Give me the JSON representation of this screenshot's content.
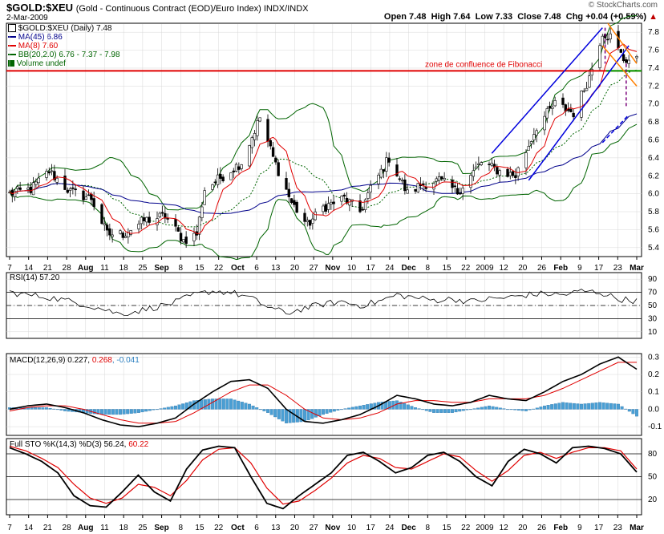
{
  "header": {
    "symbol": "$GOLD:$XEU",
    "description": "(Gold - Continuous Contract (EOD)/Euro Index)",
    "exchange": "INDX/INDX",
    "date": "2-Mar-2009",
    "watermark": "© StockCharts.com",
    "quote": {
      "open": "Open 7.48",
      "high": "High 7.64",
      "low": "Low 7.33",
      "close": "Close 7.48",
      "chg": "Chg +0.04 (+0.59%)",
      "chg_arrow": "▲"
    }
  },
  "colors": {
    "ma45": "#00008b",
    "ma8": "#e00000",
    "bb": "#006400",
    "fib_line": "#e00000",
    "channel": "#0000dd",
    "down_channel": "#ff8000",
    "dashed_marker": "#7a007a",
    "macd_hist": "#4a9fd4",
    "grid": "#d8d8d8"
  },
  "chart_data": [
    {
      "type": "candlestick",
      "panel": "price",
      "title": "$GOLD:$XEU (Daily) 7.48",
      "legend": [
        {
          "label": "$GOLD:$XEU (Daily) 7.48",
          "color": "#000000"
        },
        {
          "label": "MA(45) 6.86",
          "color": "#00008b"
        },
        {
          "label": "MA(8) 7.60",
          "color": "#e00000"
        },
        {
          "label": "BB(20,2.0) 6.76 - 7.37 - 7.98",
          "color": "#006400"
        },
        {
          "label": "Volume undef",
          "color": "#006400"
        }
      ],
      "annotation": "zone de confluence de Fibonacci",
      "fib_level": 7.37,
      "ylim": [
        5.3,
        7.9
      ],
      "yticks": [
        "5.4",
        "5.6",
        "5.8",
        "6.0",
        "6.2",
        "6.4",
        "6.6",
        "6.8",
        "7.0",
        "7.2",
        "7.4",
        "7.6",
        "7.8"
      ],
      "xticks": [
        "7",
        "14",
        "21",
        "28",
        "Aug",
        "11",
        "18",
        "25",
        "Sep",
        "8",
        "15",
        "22",
        "Oct",
        "6",
        "13",
        "20",
        "27",
        "Nov",
        "10",
        "17",
        "24",
        "Dec",
        "8",
        "15",
        "22",
        "2009",
        "12",
        "20",
        "26",
        "Feb",
        "9",
        "17",
        "23",
        "Mar"
      ],
      "x_start": "2008-07-07",
      "x_end": "2009-03-02",
      "close_path": [
        [
          "2008-07-07",
          6.0
        ],
        [
          "2008-07-15",
          6.05
        ],
        [
          "2008-07-22",
          6.25
        ],
        [
          "2008-07-30",
          6.02
        ],
        [
          "2008-08-07",
          5.95
        ],
        [
          "2008-08-13",
          5.55
        ],
        [
          "2008-08-19",
          5.55
        ],
        [
          "2008-08-27",
          5.7
        ],
        [
          "2008-09-04",
          5.75
        ],
        [
          "2008-09-11",
          5.48
        ],
        [
          "2008-09-16",
          5.55
        ],
        [
          "2008-09-19",
          6.05
        ],
        [
          "2008-09-26",
          6.2
        ],
        [
          "2008-10-03",
          6.35
        ],
        [
          "2008-10-10",
          6.85
        ],
        [
          "2008-10-15",
          6.4
        ],
        [
          "2008-10-22",
          5.9
        ],
        [
          "2008-10-28",
          5.65
        ],
        [
          "2008-11-03",
          5.85
        ],
        [
          "2008-11-11",
          5.95
        ],
        [
          "2008-11-17",
          5.8
        ],
        [
          "2008-11-21",
          6.05
        ],
        [
          "2008-11-28",
          6.4
        ],
        [
          "2008-12-05",
          6.0
        ],
        [
          "2008-12-10",
          6.1
        ],
        [
          "2008-12-17",
          6.15
        ],
        [
          "2008-12-24",
          6.02
        ],
        [
          "2009-01-02",
          6.35
        ],
        [
          "2009-01-09",
          6.25
        ],
        [
          "2009-01-15",
          6.2
        ],
        [
          "2009-01-23",
          6.75
        ],
        [
          "2009-01-30",
          7.0
        ],
        [
          "2009-02-06",
          6.9
        ],
        [
          "2009-02-12",
          7.3
        ],
        [
          "2009-02-17",
          7.8
        ],
        [
          "2009-02-20",
          7.75
        ],
        [
          "2009-02-25",
          7.5
        ],
        [
          "2009-03-02",
          7.48
        ]
      ]
    },
    {
      "type": "line",
      "panel": "rsi",
      "title": "RSI(14) 57.20",
      "ylim": [
        0,
        100
      ],
      "yticks": [
        "90",
        "70",
        "50",
        "30",
        "10"
      ],
      "values": [
        70,
        66,
        63,
        58,
        52,
        45,
        37,
        42,
        48,
        55,
        66,
        72,
        70,
        62,
        48,
        38,
        46,
        52,
        56,
        50,
        56,
        66,
        62,
        58,
        60,
        56,
        60,
        62,
        66,
        68,
        66,
        72,
        70,
        60,
        57
      ]
    },
    {
      "type": "line",
      "panel": "macd",
      "title": "MACD(12,26,9)",
      "value_label": "0.227",
      "signal_label": "0.268",
      "hist_label": "-0.041",
      "ylim": [
        -0.15,
        0.32
      ],
      "yticks": [
        "0.3",
        "0.2",
        "0.1",
        "0.0",
        "-0.1"
      ],
      "macd": [
        0.0,
        0.02,
        0.03,
        0.01,
        -0.02,
        -0.06,
        -0.09,
        -0.1,
        -0.08,
        -0.05,
        0.03,
        0.1,
        0.16,
        0.17,
        0.12,
        0.0,
        -0.07,
        -0.08,
        -0.06,
        -0.03,
        0.02,
        0.08,
        0.06,
        0.03,
        0.02,
        0.04,
        0.08,
        0.06,
        0.05,
        0.1,
        0.16,
        0.2,
        0.26,
        0.3,
        0.23
      ],
      "signal": [
        -0.01,
        0.01,
        0.02,
        0.02,
        0.0,
        -0.03,
        -0.06,
        -0.08,
        -0.08,
        -0.07,
        -0.02,
        0.04,
        0.1,
        0.14,
        0.14,
        0.08,
        0.0,
        -0.05,
        -0.06,
        -0.05,
        -0.02,
        0.03,
        0.05,
        0.05,
        0.04,
        0.04,
        0.06,
        0.06,
        0.06,
        0.08,
        0.12,
        0.17,
        0.22,
        0.27,
        0.27
      ]
    },
    {
      "type": "line",
      "panel": "stochastic",
      "title": "Full STO %K(14,3) %D(3)",
      "k_label": "56.24",
      "d_label": "60.22",
      "ylim": [
        0,
        100
      ],
      "yticks": [
        "80",
        "50",
        "20"
      ],
      "k": [
        88,
        80,
        70,
        55,
        25,
        12,
        10,
        30,
        52,
        30,
        18,
        60,
        85,
        90,
        88,
        50,
        15,
        8,
        25,
        40,
        55,
        78,
        82,
        70,
        55,
        62,
        78,
        82,
        70,
        50,
        38,
        70,
        86,
        80,
        68,
        88,
        90,
        87,
        80,
        56
      ],
      "d": [
        90,
        84,
        74,
        62,
        40,
        22,
        15,
        22,
        40,
        36,
        25,
        45,
        72,
        86,
        88,
        68,
        35,
        14,
        18,
        32,
        48,
        68,
        78,
        74,
        62,
        60,
        70,
        80,
        76,
        58,
        44,
        58,
        78,
        82,
        74,
        82,
        88,
        88,
        84,
        60
      ]
    }
  ]
}
